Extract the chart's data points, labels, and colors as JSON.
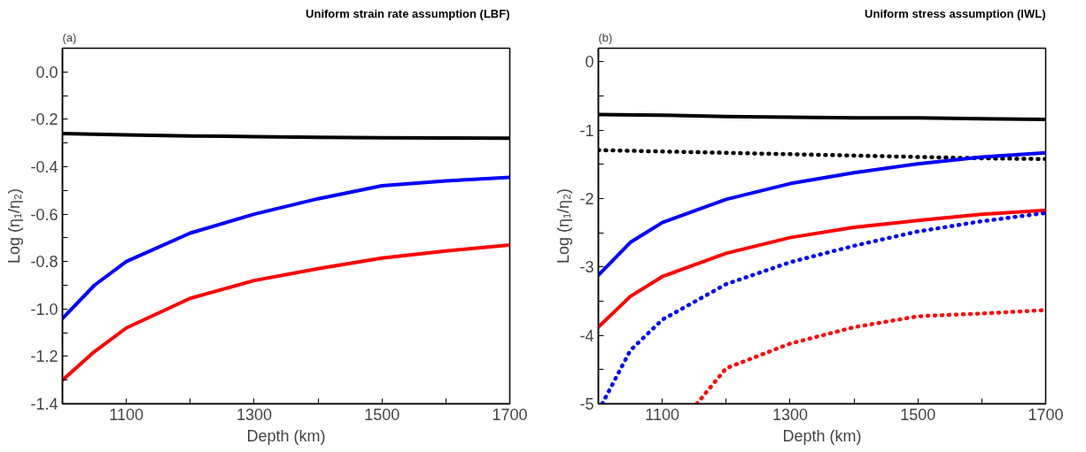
{
  "chart_data": [
    {
      "type": "line",
      "title": "Uniform strain rate assumption (LBF)",
      "xlabel": "Depth (km)",
      "ylabel": "Log (η₁/η₂)",
      "annotations": [
        "(a)"
      ],
      "x": [
        1000,
        1050,
        1100,
        1200,
        1300,
        1400,
        1500,
        1600,
        1700
      ],
      "series": [
        {
          "color": "#000000",
          "line_style": "solid",
          "values": [
            -0.26,
            -0.263,
            -0.266,
            -0.27,
            -0.273,
            -0.276,
            -0.278,
            -0.279,
            -0.28
          ]
        },
        {
          "color": "#0000ff",
          "line_style": "solid",
          "values": [
            -1.04,
            -0.9,
            -0.8,
            -0.68,
            -0.6,
            -0.535,
            -0.48,
            -0.46,
            -0.445
          ]
        },
        {
          "color": "#ff0000",
          "line_style": "solid",
          "values": [
            -1.3,
            -1.18,
            -1.08,
            -0.955,
            -0.88,
            -0.83,
            -0.785,
            -0.755,
            -0.73
          ]
        }
      ],
      "xlim": [
        1000,
        1700
      ],
      "ylim": [
        -1.4,
        0.1
      ],
      "xticks": [
        {
          "value": 1000,
          "label": null
        },
        1100,
        {
          "value": 1200,
          "label": null
        },
        1300,
        {
          "value": 1400,
          "label": null
        },
        1500,
        {
          "value": 1600,
          "label": null
        },
        1700
      ],
      "yticks": [
        -1.4,
        {
          "value": -1.3,
          "label": null
        },
        -1.2,
        {
          "value": -1.1,
          "label": null
        },
        {
          "value": -1.0,
          "label": "-1.0"
        },
        {
          "value": -0.9,
          "label": null
        },
        -0.8,
        {
          "value": -0.7,
          "label": null
        },
        -0.6,
        {
          "value": -0.5,
          "label": null
        },
        -0.4,
        {
          "value": -0.3,
          "label": null
        },
        -0.2,
        {
          "value": -0.1,
          "label": null
        },
        {
          "value": 0.0,
          "label": "0.0"
        }
      ],
      "grid": false
    },
    {
      "type": "line",
      "title": "Uniform stress assumption (IWL)",
      "xlabel": "Depth (km)",
      "ylabel": "Log (η₁/η₂)",
      "annotations": [
        "(b)"
      ],
      "series": [
        {
          "color": "#000000",
          "line_style": "solid",
          "x": [
            1000,
            1100,
            1200,
            1300,
            1400,
            1500,
            1600,
            1700
          ],
          "values": [
            -0.77,
            -0.78,
            -0.8,
            -0.81,
            -0.82,
            -0.82,
            -0.83,
            -0.84
          ]
        },
        {
          "color": "#000000",
          "line_style": "dotted",
          "x": [
            1000,
            1100,
            1200,
            1300,
            1400,
            1500,
            1600,
            1700
          ],
          "values": [
            -1.29,
            -1.31,
            -1.33,
            -1.35,
            -1.37,
            -1.39,
            -1.41,
            -1.42
          ]
        },
        {
          "color": "#0000ff",
          "line_style": "solid",
          "x": [
            1000,
            1050,
            1100,
            1200,
            1300,
            1400,
            1500,
            1600,
            1700
          ],
          "values": [
            -3.12,
            -2.64,
            -2.35,
            -2.01,
            -1.78,
            -1.62,
            -1.49,
            -1.39,
            -1.33
          ]
        },
        {
          "color": "#ff0000",
          "line_style": "solid",
          "x": [
            1000,
            1050,
            1100,
            1200,
            1300,
            1400,
            1500,
            1600,
            1700
          ],
          "values": [
            -3.88,
            -3.43,
            -3.14,
            -2.8,
            -2.57,
            -2.42,
            -2.32,
            -2.23,
            -2.17
          ]
        },
        {
          "color": "#0000ff",
          "line_style": "dotted",
          "x": [
            1006,
            1050,
            1100,
            1200,
            1300,
            1400,
            1500,
            1600,
            1700
          ],
          "values": [
            -5.0,
            -4.22,
            -3.77,
            -3.25,
            -2.93,
            -2.69,
            -2.48,
            -2.33,
            -2.21
          ]
        },
        {
          "color": "#ff0000",
          "line_style": "dotted",
          "x": [
            1154,
            1200,
            1300,
            1400,
            1500,
            1600,
            1700
          ],
          "values": [
            -5.0,
            -4.48,
            -4.12,
            -3.88,
            -3.72,
            -3.68,
            -3.63
          ]
        }
      ],
      "xlim": [
        1000,
        1700
      ],
      "ylim": [
        -5,
        0.2
      ],
      "xticks": [
        {
          "value": 1000,
          "label": null
        },
        1100,
        {
          "value": 1200,
          "label": null
        },
        1300,
        {
          "value": 1400,
          "label": null
        },
        1500,
        {
          "value": 1600,
          "label": null
        },
        1700
      ],
      "yticks": [
        -5,
        {
          "value": -4.5,
          "label": null
        },
        -4,
        {
          "value": -3.5,
          "label": null
        },
        -3,
        {
          "value": -2.5,
          "label": null
        },
        -2,
        {
          "value": -1.5,
          "label": null
        },
        -1,
        {
          "value": -0.5,
          "label": null
        },
        0
      ],
      "grid": false
    }
  ]
}
